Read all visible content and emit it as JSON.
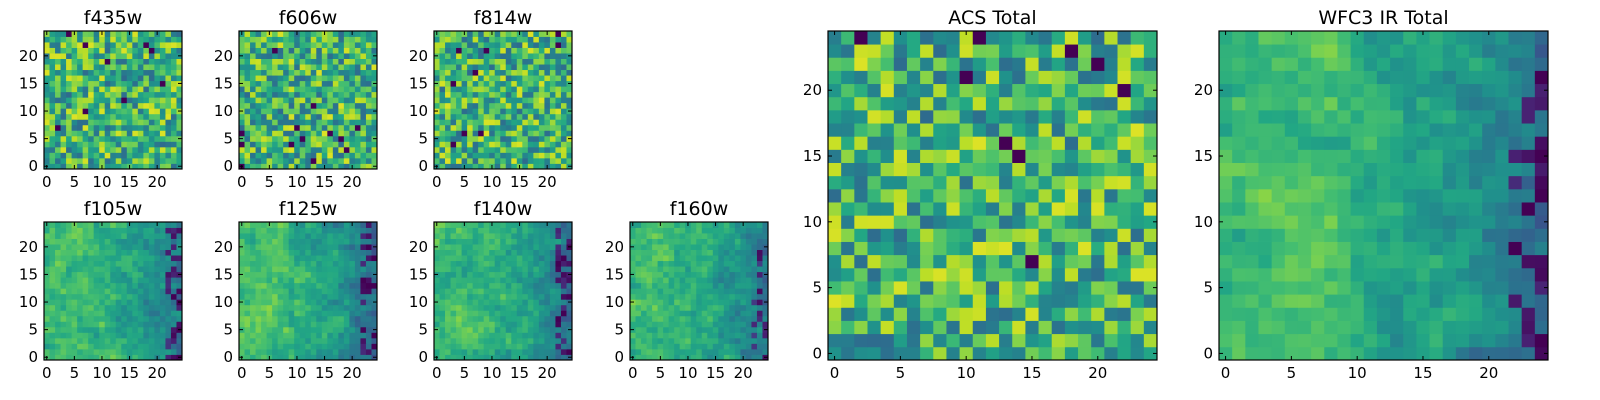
{
  "chart_data": {
    "type": "heatmap",
    "colormap": "viridis",
    "panels": [
      {
        "id": "f435w",
        "title": "f435w",
        "grid": 25,
        "xticks": [
          0,
          5,
          10,
          15,
          20
        ],
        "yticks": [
          0,
          5,
          10,
          15,
          20
        ],
        "texture": "noise",
        "seed": 11
      },
      {
        "id": "f606w",
        "title": "f606w",
        "grid": 25,
        "xticks": [
          0,
          5,
          10,
          15,
          20
        ],
        "yticks": [
          0,
          5,
          10,
          15,
          20
        ],
        "texture": "noise",
        "seed": 23
      },
      {
        "id": "f814w",
        "title": "f814w",
        "grid": 25,
        "xticks": [
          0,
          5,
          10,
          15,
          20
        ],
        "yticks": [
          0,
          5,
          10,
          15,
          20
        ],
        "texture": "noise",
        "seed": 37
      },
      {
        "id": "f105w",
        "title": "f105w",
        "grid": 25,
        "xticks": [
          0,
          5,
          10,
          15,
          20
        ],
        "yticks": [
          0,
          5,
          10,
          15,
          20
        ],
        "texture": "smooth",
        "seed": 41
      },
      {
        "id": "f125w",
        "title": "f125w",
        "grid": 25,
        "xticks": [
          0,
          5,
          10,
          15,
          20
        ],
        "yticks": [
          0,
          5,
          10,
          15,
          20
        ],
        "texture": "smooth",
        "seed": 53
      },
      {
        "id": "f140w",
        "title": "f140w",
        "grid": 25,
        "xticks": [
          0,
          5,
          10,
          15,
          20
        ],
        "yticks": [
          0,
          5,
          10,
          15,
          20
        ],
        "texture": "smooth",
        "seed": 67
      },
      {
        "id": "f160w",
        "title": "f160w",
        "grid": 25,
        "xticks": [
          0,
          5,
          10,
          15,
          20
        ],
        "yticks": [
          0,
          5,
          10,
          15,
          20
        ],
        "texture": "smooth",
        "seed": 79
      },
      {
        "id": "acs-total",
        "title": "ACS Total",
        "grid": 25,
        "xticks": [
          0,
          5,
          10,
          15,
          20
        ],
        "yticks": [
          0,
          5,
          10,
          15,
          20
        ],
        "texture": "noise",
        "seed": 97
      },
      {
        "id": "wfc3-ir-total",
        "title": "WFC3 IR Total",
        "grid": 25,
        "xticks": [
          0,
          5,
          10,
          15,
          20
        ],
        "yticks": [
          0,
          5,
          10,
          15,
          20
        ],
        "texture": "smooth",
        "seed": 101
      }
    ]
  }
}
